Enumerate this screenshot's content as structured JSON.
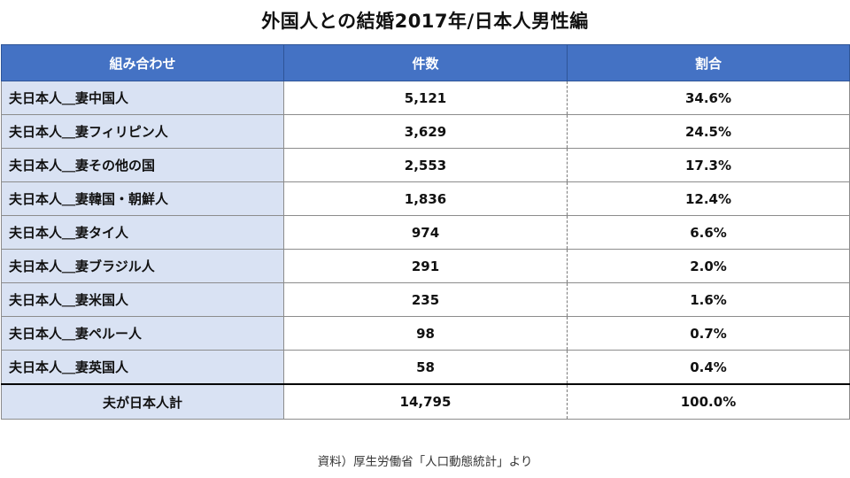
{
  "title": "外国人との結婚2017年/日本人男性編",
  "table": {
    "headers": [
      "組み合わせ",
      "件数",
      "割合"
    ],
    "rows": [
      [
        "夫日本人＿妻中国人",
        "5,121",
        "34.6%"
      ],
      [
        "夫日本人＿妻フィリピン人",
        "3,629",
        "24.5%"
      ],
      [
        "夫日本人＿妻その他の国",
        "2,553",
        "17.3%"
      ],
      [
        "夫日本人＿妻韓国・朝鮮人",
        "1,836",
        "12.4%"
      ],
      [
        "夫日本人＿妻タイ人",
        "974",
        "6.6%"
      ],
      [
        "夫日本人＿妻ブラジル人",
        "291",
        "2.0%"
      ],
      [
        "夫日本人＿妻米国人",
        "235",
        "1.6%"
      ],
      [
        "夫日本人＿妻ペルー人",
        "98",
        "0.7%"
      ],
      [
        "夫日本人＿妻英国人",
        "58",
        "0.4%"
      ]
    ],
    "total": [
      "夫が日本人計",
      "14,795",
      "100.0%"
    ]
  },
  "source": "資料）厚生労働省「人口動態統計」より",
  "colors": {
    "header_bg": "#4472c4",
    "header_text": "#ffffff",
    "label_col_bg": "#d9e2f3"
  }
}
